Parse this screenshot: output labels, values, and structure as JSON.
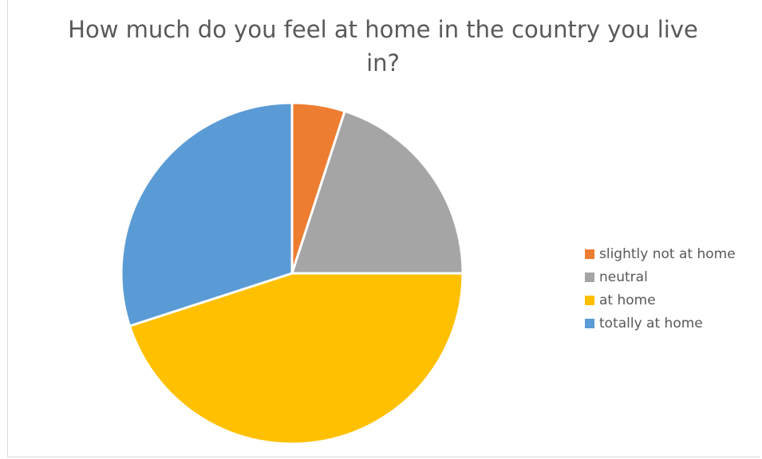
{
  "chart_data": {
    "type": "pie",
    "title": "How much do you feel at home in the country you live in?",
    "categories": [
      "slightly not at home",
      "neutral",
      "at home",
      "totally at home"
    ],
    "values": [
      5,
      20,
      45,
      30
    ],
    "colors": [
      "#ED7D31",
      "#A5A5A5",
      "#FFC000",
      "#5B9BD5"
    ],
    "start_angle_deg": 0,
    "direction": "clockwise",
    "legend_position": "right",
    "slice_border_color": "#ffffff"
  }
}
